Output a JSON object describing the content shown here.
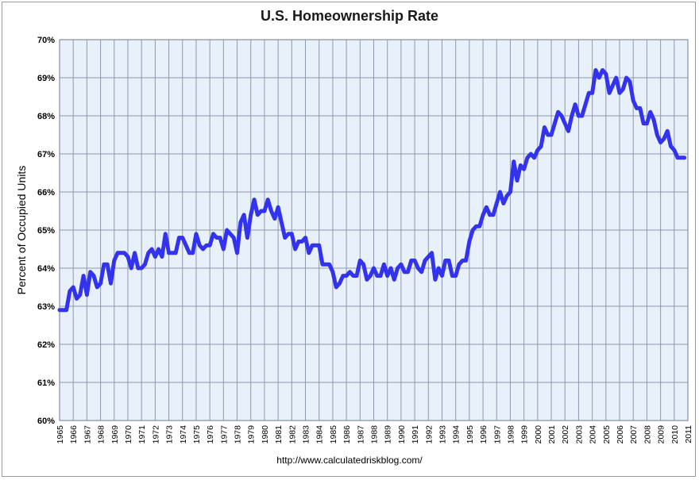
{
  "chart_data": {
    "type": "line",
    "title": "U.S. Homeownership Rate",
    "ylabel": "Percent of Occupied Units",
    "xlabel": "",
    "source": "http://www.calculatedriskblog.com/",
    "ylim": [
      60,
      70
    ],
    "xlim": [
      1965,
      2011
    ],
    "yticks": [
      "60%",
      "61%",
      "62%",
      "63%",
      "64%",
      "65%",
      "66%",
      "67%",
      "68%",
      "69%",
      "70%"
    ],
    "xticks": [
      "1965",
      "1966",
      "1967",
      "1968",
      "1969",
      "1970",
      "1971",
      "1972",
      "1973",
      "1974",
      "1975",
      "1976",
      "1977",
      "1978",
      "1979",
      "1980",
      "1981",
      "1982",
      "1983",
      "1984",
      "1985",
      "1986",
      "1987",
      "1988",
      "1989",
      "1990",
      "1991",
      "1992",
      "1993",
      "1994",
      "1995",
      "1996",
      "1997",
      "1998",
      "1999",
      "2000",
      "2001",
      "2002",
      "2003",
      "2004",
      "2005",
      "2006",
      "2007",
      "2008",
      "2009",
      "2010",
      "2011"
    ],
    "grid": true,
    "colors": {
      "line": "#3333ee",
      "plot_bg": "#e8f0fa",
      "grid": "#8c9aae"
    },
    "series": [
      {
        "x": [
          1965.0,
          1965.25,
          1965.5,
          1965.75,
          1966.0,
          1966.25,
          1966.5,
          1966.75,
          1967.0,
          1967.25,
          1967.5,
          1967.75,
          1968.0,
          1968.25,
          1968.5,
          1968.75,
          1969.0,
          1969.25,
          1969.5,
          1969.75,
          1970.0,
          1970.25,
          1970.5,
          1970.75,
          1971.0,
          1971.25,
          1971.5,
          1971.75,
          1972.0,
          1972.25,
          1972.5,
          1972.75,
          1973.0,
          1973.25,
          1973.5,
          1973.75,
          1974.0,
          1974.25,
          1974.5,
          1974.75,
          1975.0,
          1975.25,
          1975.5,
          1975.75,
          1976.0,
          1976.25,
          1976.5,
          1976.75,
          1977.0,
          1977.25,
          1977.5,
          1977.75,
          1978.0,
          1978.25,
          1978.5,
          1978.75,
          1979.0,
          1979.25,
          1979.5,
          1979.75,
          1980.0,
          1980.25,
          1980.5,
          1980.75,
          1981.0,
          1981.25,
          1981.5,
          1981.75,
          1982.0,
          1982.25,
          1982.5,
          1982.75,
          1983.0,
          1983.25,
          1983.5,
          1983.75,
          1984.0,
          1984.25,
          1984.5,
          1984.75,
          1985.0,
          1985.25,
          1985.5,
          1985.75,
          1986.0,
          1986.25,
          1986.5,
          1986.75,
          1987.0,
          1987.25,
          1987.5,
          1987.75,
          1988.0,
          1988.25,
          1988.5,
          1988.75,
          1989.0,
          1989.25,
          1989.5,
          1989.75,
          1990.0,
          1990.25,
          1990.5,
          1990.75,
          1991.0,
          1991.25,
          1991.5,
          1991.75,
          1992.0,
          1992.25,
          1992.5,
          1992.75,
          1993.0,
          1993.25,
          1993.5,
          1993.75,
          1994.0,
          1994.25,
          1994.5,
          1994.75,
          1995.0,
          1995.25,
          1995.5,
          1995.75,
          1996.0,
          1996.25,
          1996.5,
          1996.75,
          1997.0,
          1997.25,
          1997.5,
          1997.75,
          1998.0,
          1998.25,
          1998.5,
          1998.75,
          1999.0,
          1999.25,
          1999.5,
          1999.75,
          2000.0,
          2000.25,
          2000.5,
          2000.75,
          2001.0,
          2001.25,
          2001.5,
          2001.75,
          2002.0,
          2002.25,
          2002.5,
          2002.75,
          2003.0,
          2003.25,
          2003.5,
          2003.75,
          2004.0,
          2004.25,
          2004.5,
          2004.75,
          2005.0,
          2005.25,
          2005.5,
          2005.75,
          2006.0,
          2006.25,
          2006.5,
          2006.75,
          2007.0,
          2007.25,
          2007.5,
          2007.75,
          2008.0,
          2008.25,
          2008.5,
          2008.75,
          2009.0,
          2009.25,
          2009.5,
          2009.75,
          2010.0,
          2010.25,
          2010.5,
          2010.75
        ],
        "values": [
          62.9,
          62.9,
          62.9,
          63.4,
          63.5,
          63.2,
          63.3,
          63.8,
          63.3,
          63.9,
          63.8,
          63.5,
          63.6,
          64.1,
          64.1,
          63.6,
          64.2,
          64.4,
          64.4,
          64.4,
          64.3,
          64.0,
          64.4,
          64.0,
          64.0,
          64.1,
          64.4,
          64.5,
          64.3,
          64.5,
          64.3,
          64.9,
          64.4,
          64.4,
          64.4,
          64.8,
          64.8,
          64.6,
          64.4,
          64.4,
          64.9,
          64.6,
          64.5,
          64.6,
          64.6,
          64.9,
          64.8,
          64.8,
          64.5,
          65.0,
          64.9,
          64.8,
          64.4,
          65.2,
          65.4,
          64.8,
          65.4,
          65.8,
          65.4,
          65.5,
          65.5,
          65.8,
          65.5,
          65.3,
          65.6,
          65.2,
          64.8,
          64.9,
          64.9,
          64.5,
          64.7,
          64.7,
          64.8,
          64.4,
          64.6,
          64.6,
          64.6,
          64.1,
          64.1,
          64.1,
          63.9,
          63.5,
          63.6,
          63.8,
          63.8,
          63.9,
          63.8,
          63.8,
          64.2,
          64.1,
          63.7,
          63.8,
          64.0,
          63.8,
          63.8,
          64.1,
          63.8,
          64.0,
          63.7,
          64.0,
          64.1,
          63.9,
          63.9,
          64.2,
          64.2,
          64.0,
          63.9,
          64.2,
          64.3,
          64.4,
          63.7,
          64.0,
          63.8,
          64.2,
          64.2,
          63.8,
          63.8,
          64.1,
          64.2,
          64.2,
          64.7,
          65.0,
          65.1,
          65.1,
          65.4,
          65.6,
          65.4,
          65.4,
          65.7,
          66.0,
          65.7,
          65.9,
          66.0,
          66.8,
          66.3,
          66.7,
          66.6,
          66.9,
          67.0,
          66.9,
          67.1,
          67.2,
          67.7,
          67.5,
          67.5,
          67.8,
          68.1,
          68.0,
          67.8,
          67.6,
          68.0,
          68.3,
          68.0,
          68.0,
          68.3,
          68.6,
          68.6,
          69.2,
          69.0,
          69.2,
          69.1,
          68.6,
          68.8,
          69.0,
          68.6,
          68.7,
          69.0,
          68.9,
          68.4,
          68.2,
          68.2,
          67.8,
          67.8,
          68.1,
          67.9,
          67.5,
          67.3,
          67.4,
          67.6,
          67.2,
          67.1,
          66.9,
          66.9,
          66.9
        ]
      }
    ]
  }
}
